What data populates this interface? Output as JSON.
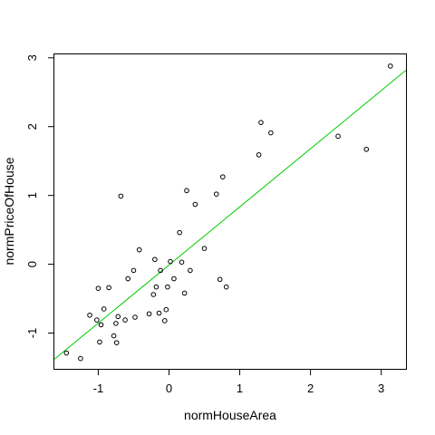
{
  "chart_data": {
    "type": "scatter",
    "xlabel": "normHouseArea",
    "ylabel": "normPriceOfHouse",
    "xlim": [
      -1.62,
      3.35
    ],
    "ylim": [
      -1.52,
      3.05
    ],
    "x_ticks": [
      -1,
      0,
      1,
      2,
      3
    ],
    "y_ticks": [
      -1,
      0,
      1,
      2,
      3
    ],
    "x_tick_labels": [
      "-1",
      "0",
      "1",
      "2",
      "3"
    ],
    "y_tick_labels": [
      "-1",
      "0",
      "1",
      "2",
      "3"
    ],
    "grid": false,
    "legend": "none",
    "points": [
      {
        "x": -1.45,
        "y": -1.29
      },
      {
        "x": -1.25,
        "y": -1.37
      },
      {
        "x": -1.12,
        "y": -0.74
      },
      {
        "x": -1.02,
        "y": -0.81
      },
      {
        "x": -1.0,
        "y": -0.35
      },
      {
        "x": -0.98,
        "y": -1.13
      },
      {
        "x": -0.96,
        "y": -0.88
      },
      {
        "x": -0.92,
        "y": -0.65
      },
      {
        "x": -0.85,
        "y": -0.34
      },
      {
        "x": -0.78,
        "y": -1.04
      },
      {
        "x": -0.75,
        "y": -0.86
      },
      {
        "x": -0.74,
        "y": -1.14
      },
      {
        "x": -0.72,
        "y": -0.76
      },
      {
        "x": -0.68,
        "y": 0.99
      },
      {
        "x": -0.62,
        "y": -0.81
      },
      {
        "x": -0.58,
        "y": -0.21
      },
      {
        "x": -0.5,
        "y": -0.09
      },
      {
        "x": -0.48,
        "y": -0.77
      },
      {
        "x": -0.42,
        "y": 0.21
      },
      {
        "x": -0.28,
        "y": -0.72
      },
      {
        "x": -0.22,
        "y": -0.44
      },
      {
        "x": -0.2,
        "y": 0.07
      },
      {
        "x": -0.18,
        "y": -0.33
      },
      {
        "x": -0.14,
        "y": -0.71
      },
      {
        "x": -0.12,
        "y": -0.09
      },
      {
        "x": -0.06,
        "y": -0.82
      },
      {
        "x": -0.04,
        "y": -0.66
      },
      {
        "x": -0.02,
        "y": -0.33
      },
      {
        "x": 0.02,
        "y": 0.04
      },
      {
        "x": 0.07,
        "y": -0.21
      },
      {
        "x": 0.15,
        "y": 0.46
      },
      {
        "x": 0.18,
        "y": 0.03
      },
      {
        "x": 0.22,
        "y": -0.42
      },
      {
        "x": 0.25,
        "y": 1.07
      },
      {
        "x": 0.3,
        "y": -0.09
      },
      {
        "x": 0.37,
        "y": 0.87
      },
      {
        "x": 0.5,
        "y": 0.23
      },
      {
        "x": 0.67,
        "y": 1.02
      },
      {
        "x": 0.72,
        "y": -0.22
      },
      {
        "x": 0.76,
        "y": 1.27
      },
      {
        "x": 0.81,
        "y": -0.33
      },
      {
        "x": 1.27,
        "y": 1.59
      },
      {
        "x": 1.3,
        "y": 2.06
      },
      {
        "x": 1.44,
        "y": 1.91
      },
      {
        "x": 2.39,
        "y": 1.86
      },
      {
        "x": 2.79,
        "y": 1.67
      },
      {
        "x": 3.13,
        "y": 2.88
      }
    ],
    "fit_line": {
      "color": "#00cc00",
      "x": [
        -1.62,
        3.35
      ],
      "y": [
        -1.38,
        2.82
      ]
    },
    "point_color": "#000000"
  }
}
